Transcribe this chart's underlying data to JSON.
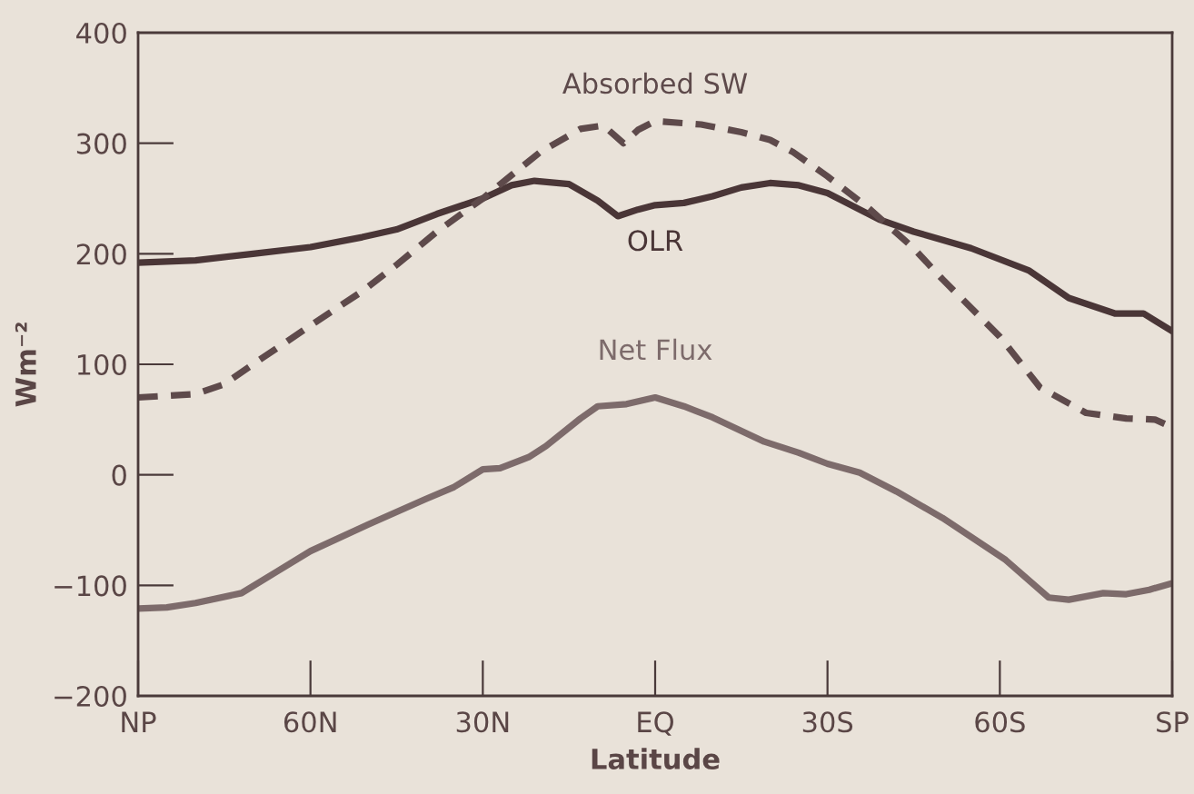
{
  "chart_data": {
    "type": "line",
    "xlabel": "Latitude",
    "ylabel": "Wm⁻²",
    "xlim": [
      90,
      -90
    ],
    "ylim": [
      -200,
      400
    ],
    "xticks": [
      {
        "value": 90,
        "label": "NP"
      },
      {
        "value": 60,
        "label": "60N"
      },
      {
        "value": 30,
        "label": "30N"
      },
      {
        "value": 0,
        "label": "EQ"
      },
      {
        "value": -30,
        "label": "30S"
      },
      {
        "value": -60,
        "label": "60S"
      },
      {
        "value": -90,
        "label": "SP"
      }
    ],
    "yticks": [
      -200,
      -100,
      0,
      100,
      200,
      300,
      400
    ],
    "grid": false,
    "legend": false,
    "series": [
      {
        "name": "OLR",
        "color": "#4a3637",
        "line_style": "solid",
        "x": [
          90,
          80,
          70,
          60,
          51,
          45,
          38,
          30,
          25,
          21,
          15,
          10,
          6.5,
          3,
          0,
          -5,
          -10,
          -15,
          -20,
          -25,
          -30,
          -39,
          -45,
          -55,
          -65,
          -72,
          -80,
          -85,
          -90
        ],
        "values": [
          192,
          194,
          200,
          206,
          215,
          222,
          236,
          250,
          262,
          266,
          263,
          248,
          234,
          240,
          244,
          246,
          252,
          260,
          264,
          262,
          255,
          231,
          220,
          205,
          185,
          160,
          146,
          146,
          130
        ]
      },
      {
        "name": "Absorbed SW",
        "color": "#5e4a4b",
        "line_style": "dashed",
        "x": [
          90,
          80,
          75,
          70,
          60,
          51,
          45,
          38,
          30,
          25.5,
          20,
          13,
          9,
          5.5,
          3,
          0,
          -8,
          -15,
          -20,
          -24,
          -30,
          -37,
          -45,
          -50,
          -60,
          -67,
          -75,
          -82,
          -87,
          -90
        ],
        "values": [
          70,
          73,
          82,
          100,
          135,
          166,
          190,
          220,
          250,
          269,
          292,
          313,
          316,
          300,
          312,
          320,
          317,
          310,
          303,
          292,
          270,
          242,
          205,
          177,
          125,
          79,
          56,
          51,
          50,
          43
        ]
      },
      {
        "name": "Net Flux",
        "color": "#7d6b6b",
        "line_style": "solid",
        "x": [
          90,
          85,
          80,
          72,
          66,
          60,
          50,
          40,
          35,
          30,
          27,
          22,
          19,
          13,
          10,
          5,
          0,
          -5,
          -10,
          -19,
          -25,
          -30,
          -35.6,
          -42,
          -50,
          -61,
          -68.5,
          -72,
          -78,
          -82,
          -86,
          -90
        ],
        "values": [
          -121,
          -120,
          -116,
          -107,
          -88,
          -69,
          -45,
          -22,
          -11,
          5,
          6,
          16,
          26,
          51,
          62,
          64,
          70,
          62,
          52,
          30,
          20,
          10,
          2,
          -15,
          -39,
          -77,
          -111,
          -113,
          -107,
          -108,
          -104,
          -98
        ]
      }
    ]
  }
}
